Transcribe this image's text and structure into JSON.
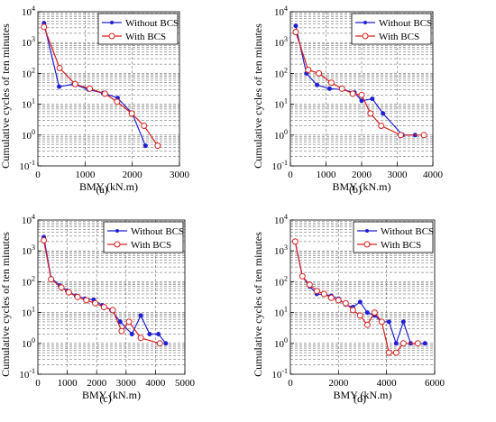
{
  "figure": {
    "series_colors": {
      "Without BCS": "#1f1fd6",
      "With BCS": "#d62020"
    }
  },
  "chart_data": [
    {
      "type": "line",
      "panel_label": "(a)",
      "xlabel": "BMY (kN.m)",
      "ylabel": "Cumulative cycles of ten minutes",
      "xlim": [
        0,
        3000
      ],
      "ylim": [
        0.1,
        10000
      ],
      "yscale": "log",
      "xticks": [
        0,
        1000,
        2000,
        3000
      ],
      "yticks_labels": [
        "10^-1",
        "10^0",
        "10^1",
        "10^2",
        "10^3",
        "10^4"
      ],
      "grid": "dashed",
      "legend": "top-right",
      "series": [
        {
          "name": "Without BCS",
          "marker": "dot",
          "x": [
            130,
            450,
            760,
            1070,
            1380,
            1690,
            2000,
            2280
          ],
          "y": [
            4200,
            37,
            45,
            30,
            23,
            16,
            5,
            0.45
          ]
        },
        {
          "name": "With BCS",
          "marker": "circle",
          "x": [
            130,
            460,
            790,
            1100,
            1420,
            1680,
            1990,
            2250,
            2540
          ],
          "y": [
            3200,
            150,
            45,
            32,
            22,
            12,
            5,
            2,
            0.45
          ]
        }
      ]
    },
    {
      "type": "line",
      "panel_label": "(b)",
      "xlabel": "BMY (kN.m)",
      "ylabel": "Cumulative cycles of ten minutes",
      "xlim": [
        0,
        4000
      ],
      "ylim": [
        0.1,
        10000
      ],
      "yscale": "log",
      "xticks": [
        0,
        1000,
        2000,
        3000,
        4000
      ],
      "yticks_labels": [
        "10^-1",
        "10^0",
        "10^1",
        "10^2",
        "10^3",
        "10^4"
      ],
      "grid": "dashed",
      "legend": "top-right",
      "series": [
        {
          "name": "Without BCS",
          "marker": "dot",
          "x": [
            150,
            450,
            750,
            1100,
            1450,
            1800,
            2000,
            2300,
            2600,
            3150,
            3500
          ],
          "y": [
            3500,
            100,
            42,
            32,
            30,
            24,
            13,
            15,
            5,
            1,
            1
          ]
        },
        {
          "name": "With BCS",
          "marker": "circle",
          "x": [
            150,
            500,
            800,
            1150,
            1450,
            1750,
            2000,
            2250,
            2550,
            3100,
            3750
          ],
          "y": [
            2200,
            130,
            100,
            50,
            32,
            22,
            20,
            5,
            2,
            1,
            1
          ]
        }
      ]
    },
    {
      "type": "line",
      "panel_label": "(c)",
      "xlabel": "BMY (kN.m)",
      "ylabel": "Cumulative cycles of ten minutes",
      "xlim": [
        0,
        5000
      ],
      "ylim": [
        0.1,
        10000
      ],
      "yscale": "log",
      "xticks": [
        0,
        1000,
        2000,
        3000,
        4000,
        5000
      ],
      "yticks_labels": [
        "10^-1",
        "10^0",
        "10^1",
        "10^2",
        "10^3",
        "10^4"
      ],
      "grid": "dashed",
      "legend": "top-right",
      "series": [
        {
          "name": "Without BCS",
          "marker": "dot",
          "x": [
            200,
            450,
            750,
            1000,
            1300,
            1600,
            1900,
            2200,
            2500,
            2800,
            3200,
            3500,
            3800,
            4100,
            4350
          ],
          "y": [
            2800,
            130,
            75,
            50,
            35,
            28,
            26,
            17,
            12,
            5,
            2,
            8,
            2,
            2,
            1
          ]
        },
        {
          "name": "With BCS",
          "marker": "circle",
          "x": [
            200,
            450,
            800,
            1050,
            1350,
            1650,
            1950,
            2250,
            2550,
            2850,
            3100,
            3500,
            4150
          ],
          "y": [
            2200,
            120,
            65,
            45,
            32,
            25,
            20,
            15,
            12,
            2.5,
            5,
            1.5,
            1
          ]
        }
      ]
    },
    {
      "type": "line",
      "panel_label": "(d)",
      "xlabel": "BMY (kN.m)",
      "ylabel": "Cumulative cycles of ten minutes",
      "xlim": [
        0,
        6000
      ],
      "ylim": [
        0.1,
        10000
      ],
      "yscale": "log",
      "xticks": [
        0,
        2000,
        4000,
        6000
      ],
      "yticks_labels": [
        "10^-1",
        "10^0",
        "10^1",
        "10^2",
        "10^3",
        "10^4"
      ],
      "grid": "dashed",
      "legend": "top-right",
      "series": [
        {
          "name": "Without BCS",
          "marker": "dot",
          "x": [
            200,
            500,
            800,
            1100,
            1400,
            1700,
            2000,
            2300,
            2600,
            2900,
            3200,
            3500,
            3800,
            4100,
            4400,
            4700,
            5000,
            5300,
            5600
          ],
          "y": [
            2000,
            150,
            70,
            40,
            38,
            35,
            28,
            18,
            15,
            22,
            10,
            8,
            5,
            5,
            1,
            5,
            1,
            1,
            1
          ]
        },
        {
          "name": "With BCS",
          "marker": "circle",
          "x": [
            200,
            500,
            800,
            1100,
            1400,
            1700,
            2000,
            2300,
            2600,
            2900,
            3200,
            3500,
            3800,
            4100,
            4400,
            4700,
            5300
          ],
          "y": [
            2000,
            150,
            80,
            50,
            40,
            30,
            25,
            20,
            12,
            8,
            4,
            10,
            5,
            0.5,
            0.5,
            1,
            1
          ]
        }
      ]
    }
  ]
}
